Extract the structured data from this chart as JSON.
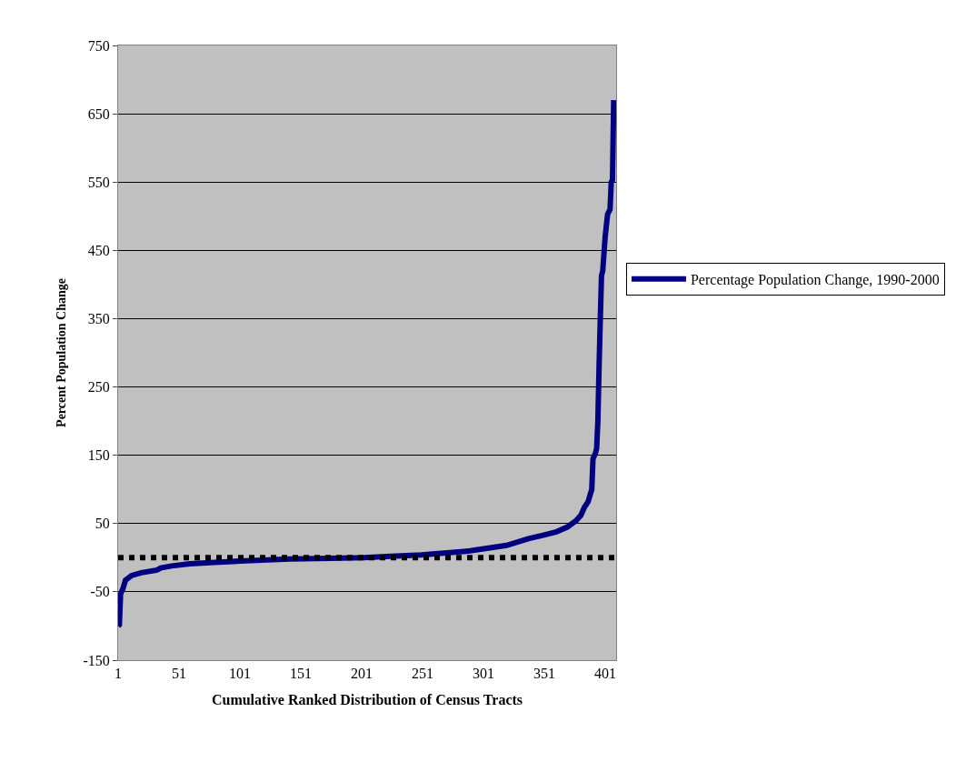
{
  "chart_data": {
    "type": "line",
    "xlabel": "Cumulative Ranked Distribution of Census Tracts",
    "ylabel": "Percent Population Change",
    "x": [
      1,
      2,
      3,
      5,
      7,
      12,
      20,
      33,
      36,
      45,
      60,
      80,
      101,
      142,
      175,
      203,
      225,
      250,
      271,
      290,
      305,
      320,
      338,
      350,
      361,
      370,
      377,
      381,
      384,
      387,
      389,
      390,
      391,
      393,
      394,
      395,
      396,
      397,
      398,
      399,
      401,
      403,
      405,
      406,
      407,
      408
    ],
    "series": [
      {
        "name": "Percentage Population Change, 1990-2000",
        "color": "#000080",
        "values": [
          -100,
          -98,
          -53,
          -45,
          -33,
          -26,
          -22,
          -18,
          -15,
          -12,
          -9,
          -7,
          -5,
          -2,
          -1,
          0,
          2,
          4,
          7,
          10,
          14,
          18,
          28,
          33,
          38,
          45,
          54,
          62,
          74,
          82,
          94,
          100,
          145,
          153,
          160,
          200,
          280,
          350,
          413,
          420,
          470,
          503,
          510,
          550,
          553,
          670
        ]
      }
    ],
    "xlim": [
      1,
      410
    ],
    "xticks": [
      1,
      51,
      101,
      151,
      201,
      251,
      301,
      351,
      401
    ],
    "ylim": [
      -150,
      750
    ],
    "yticks": [
      -150,
      -50,
      50,
      150,
      250,
      350,
      450,
      550,
      650,
      750
    ],
    "grid": "y",
    "legend": "right",
    "line_style": "solid",
    "marker": "none",
    "ref_lines": [
      {
        "axis": "y",
        "value": 0,
        "color": "#000000",
        "line_style": "dotted"
      }
    ]
  }
}
